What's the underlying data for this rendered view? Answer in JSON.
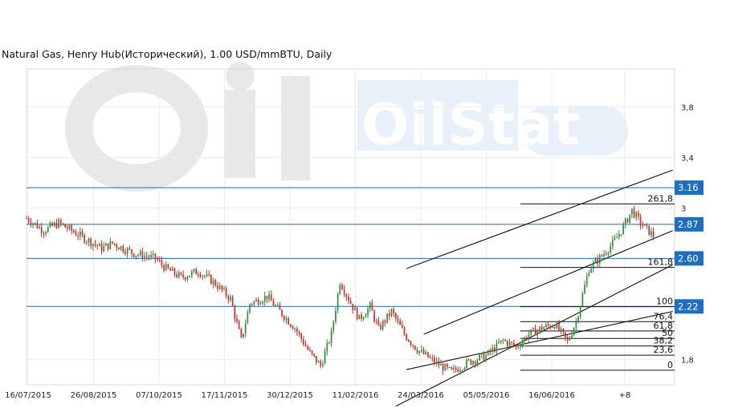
{
  "chart_data": {
    "type": "candlestick",
    "title": "Natural Gas, Henry Hub(Исторический), 1.00 USD/mmBTU, Daily",
    "watermark": "OilStat",
    "x_tick_labels": [
      "16/07/2015",
      "26/08/2015",
      "07/10/2015",
      "17/11/2015",
      "30/12/2015",
      "11/02/2016",
      "24/03/2016",
      "05/05/2016",
      "16/06/2016",
      "+8"
    ],
    "y_tick_labels": [
      {
        "value": 3.8,
        "label": "3,8"
      },
      {
        "value": 3.4,
        "label": "3,4"
      },
      {
        "value": 3.0,
        "label": "3"
      },
      {
        "value": 1.8,
        "label": "1,8"
      }
    ],
    "ylim": [
      1.6,
      4.1
    ],
    "up_color": "#2e8b3a",
    "down_color": "#d62828",
    "close_path": [
      [
        0,
        2.92
      ],
      [
        8,
        2.82
      ],
      [
        15,
        2.88
      ],
      [
        25,
        2.78
      ],
      [
        35,
        2.68
      ],
      [
        40,
        2.72
      ],
      [
        50,
        2.64
      ],
      [
        60,
        2.6
      ],
      [
        65,
        2.52
      ],
      [
        72,
        2.45
      ],
      [
        80,
        2.5
      ],
      [
        88,
        2.4
      ],
      [
        95,
        2.28
      ],
      [
        100,
        1.95
      ],
      [
        104,
        2.24
      ],
      [
        112,
        2.3
      ],
      [
        118,
        2.18
      ],
      [
        125,
        2.05
      ],
      [
        132,
        1.85
      ],
      [
        137,
        1.75
      ],
      [
        142,
        2.0
      ],
      [
        146,
        2.42
      ],
      [
        150,
        2.28
      ],
      [
        155,
        2.12
      ],
      [
        160,
        2.22
      ],
      [
        164,
        2.04
      ],
      [
        170,
        2.18
      ],
      [
        176,
        2.0
      ],
      [
        182,
        1.88
      ],
      [
        190,
        1.78
      ],
      [
        198,
        1.7
      ],
      [
        206,
        1.78
      ],
      [
        214,
        1.83
      ],
      [
        222,
        1.95
      ],
      [
        228,
        1.9
      ],
      [
        234,
        2.0
      ],
      [
        240,
        2.05
      ],
      [
        246,
        2.08
      ],
      [
        252,
        1.94
      ],
      [
        256,
        2.1
      ],
      [
        262,
        2.52
      ],
      [
        268,
        2.62
      ],
      [
        274,
        2.74
      ],
      [
        278,
        2.85
      ],
      [
        282,
        2.98
      ],
      [
        286,
        2.88
      ],
      [
        292,
        2.78
      ]
    ],
    "last_index": 292,
    "future_bars": 8,
    "horizontal_levels": [
      {
        "value": 3.16,
        "label": "3.16"
      },
      {
        "value": 2.87,
        "label": "2.87"
      },
      {
        "value": 2.6,
        "label": "2.60"
      },
      {
        "value": 2.22,
        "label": "2.22"
      }
    ],
    "fibonacci": {
      "start_index": 230,
      "low": 1.715,
      "high": 2.218,
      "levels": [
        {
          "ratio": 2.618,
          "label": "261,8"
        },
        {
          "ratio": 1.618,
          "label": "161,8"
        },
        {
          "ratio": 1.0,
          "label": "100"
        },
        {
          "ratio": 0.764,
          "label": "76,4"
        },
        {
          "ratio": 0.618,
          "label": "61,8"
        },
        {
          "ratio": 0.5,
          "label": "50"
        },
        {
          "ratio": 0.382,
          "label": "38,2"
        },
        {
          "ratio": 0.236,
          "label": "23,6"
        },
        {
          "ratio": 0.0,
          "label": "0"
        }
      ]
    },
    "trend_lines": [
      {
        "x1": 172,
        "y1": 1.43,
        "x2": 301,
        "y2": 2.55
      },
      {
        "x1": 185,
        "y1": 2.0,
        "x2": 301,
        "y2": 2.82
      },
      {
        "x1": 177,
        "y1": 2.52,
        "x2": 301,
        "y2": 3.3
      },
      {
        "x1": 177,
        "y1": 1.72,
        "x2": 301,
        "y2": 2.18
      }
    ]
  }
}
